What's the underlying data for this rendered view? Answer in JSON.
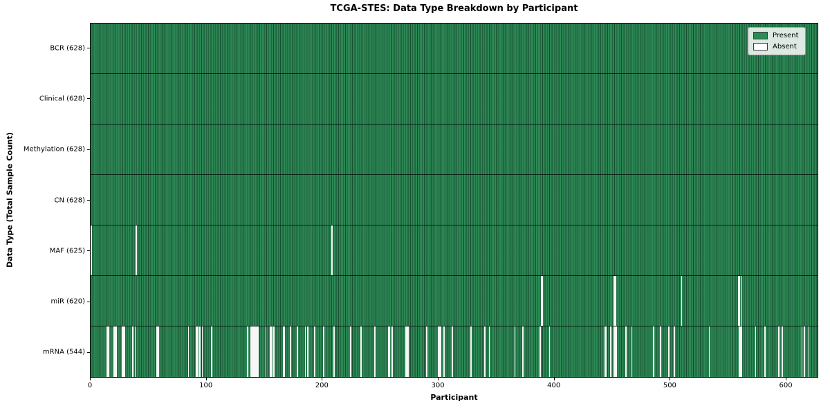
{
  "chart_data": {
    "type": "heatmap",
    "title": "TCGA-STES: Data Type Breakdown by Participant",
    "xlabel": "Participant",
    "ylabel": "Data Type (Total Sample Count)",
    "n_participants": 628,
    "xlim": [
      0,
      628
    ],
    "x_ticks": [
      0,
      100,
      200,
      300,
      400,
      500,
      600
    ],
    "grid": false,
    "legend_position": "upper right",
    "legend": [
      {
        "label": "Present",
        "color": "#2e8b57"
      },
      {
        "label": "Absent",
        "color": "#ffffff"
      }
    ],
    "colors": {
      "present": "#2e8b57",
      "absent": "#f7f7f7",
      "bar_edge": "#0a3018",
      "axes_border": "#000000",
      "legend_bg": "#fdfdfd",
      "legend_border": "#9a9a9a"
    },
    "rows": [
      {
        "label": "BCR",
        "count": 628,
        "tick_label": "BCR (628)",
        "missing": []
      },
      {
        "label": "Clinical",
        "count": 628,
        "tick_label": "Clinical (628)",
        "missing": []
      },
      {
        "label": "Methylation",
        "count": 628,
        "tick_label": "Methylation (628)",
        "missing": []
      },
      {
        "label": "CN",
        "count": 628,
        "tick_label": "CN (628)",
        "missing": []
      },
      {
        "label": "MAF",
        "count": 625,
        "tick_label": "MAF (625)",
        "missing": [
          0,
          39,
          208
        ]
      },
      {
        "label": "miR",
        "count": 620,
        "tick_label": "miR (620)",
        "missing": [
          389,
          390,
          452,
          453,
          510,
          559,
          560,
          562
        ]
      },
      {
        "label": "mRNA",
        "count": 544,
        "tick_label": "mRNA (544)",
        "missing": [
          14,
          15,
          20,
          21,
          22,
          27,
          28,
          29,
          36,
          38,
          57,
          58,
          84,
          91,
          92,
          94,
          96,
          104,
          135,
          138,
          139,
          140,
          141,
          142,
          143,
          144,
          151,
          155,
          156,
          158,
          166,
          167,
          172,
          178,
          185,
          187,
          193,
          201,
          210,
          224,
          233,
          245,
          257,
          258,
          260,
          272,
          273,
          274,
          290,
          300,
          301,
          302,
          305,
          312,
          328,
          340,
          344,
          366,
          373,
          388,
          396,
          444,
          445,
          449,
          452,
          453,
          454,
          462,
          467,
          486,
          492,
          499,
          504,
          534,
          560,
          561,
          562,
          574,
          582,
          594,
          597,
          614,
          616,
          620
        ]
      }
    ]
  }
}
